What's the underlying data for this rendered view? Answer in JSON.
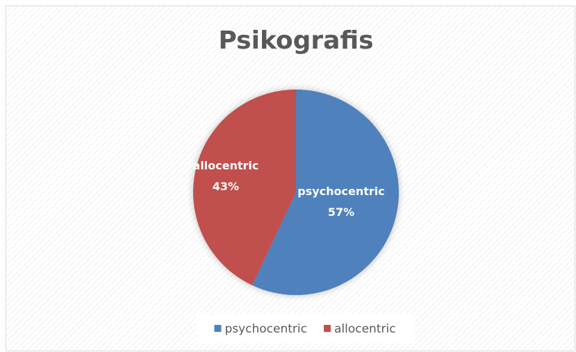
{
  "chart_data": {
    "type": "pie",
    "title": "Psikografis",
    "categories": [
      "psychocentric",
      "allocentric"
    ],
    "values": [
      57,
      43
    ],
    "value_labels": [
      "57%",
      "43%"
    ],
    "colors": [
      "#4f81bd",
      "#c0504d"
    ],
    "legend": "bottom"
  }
}
